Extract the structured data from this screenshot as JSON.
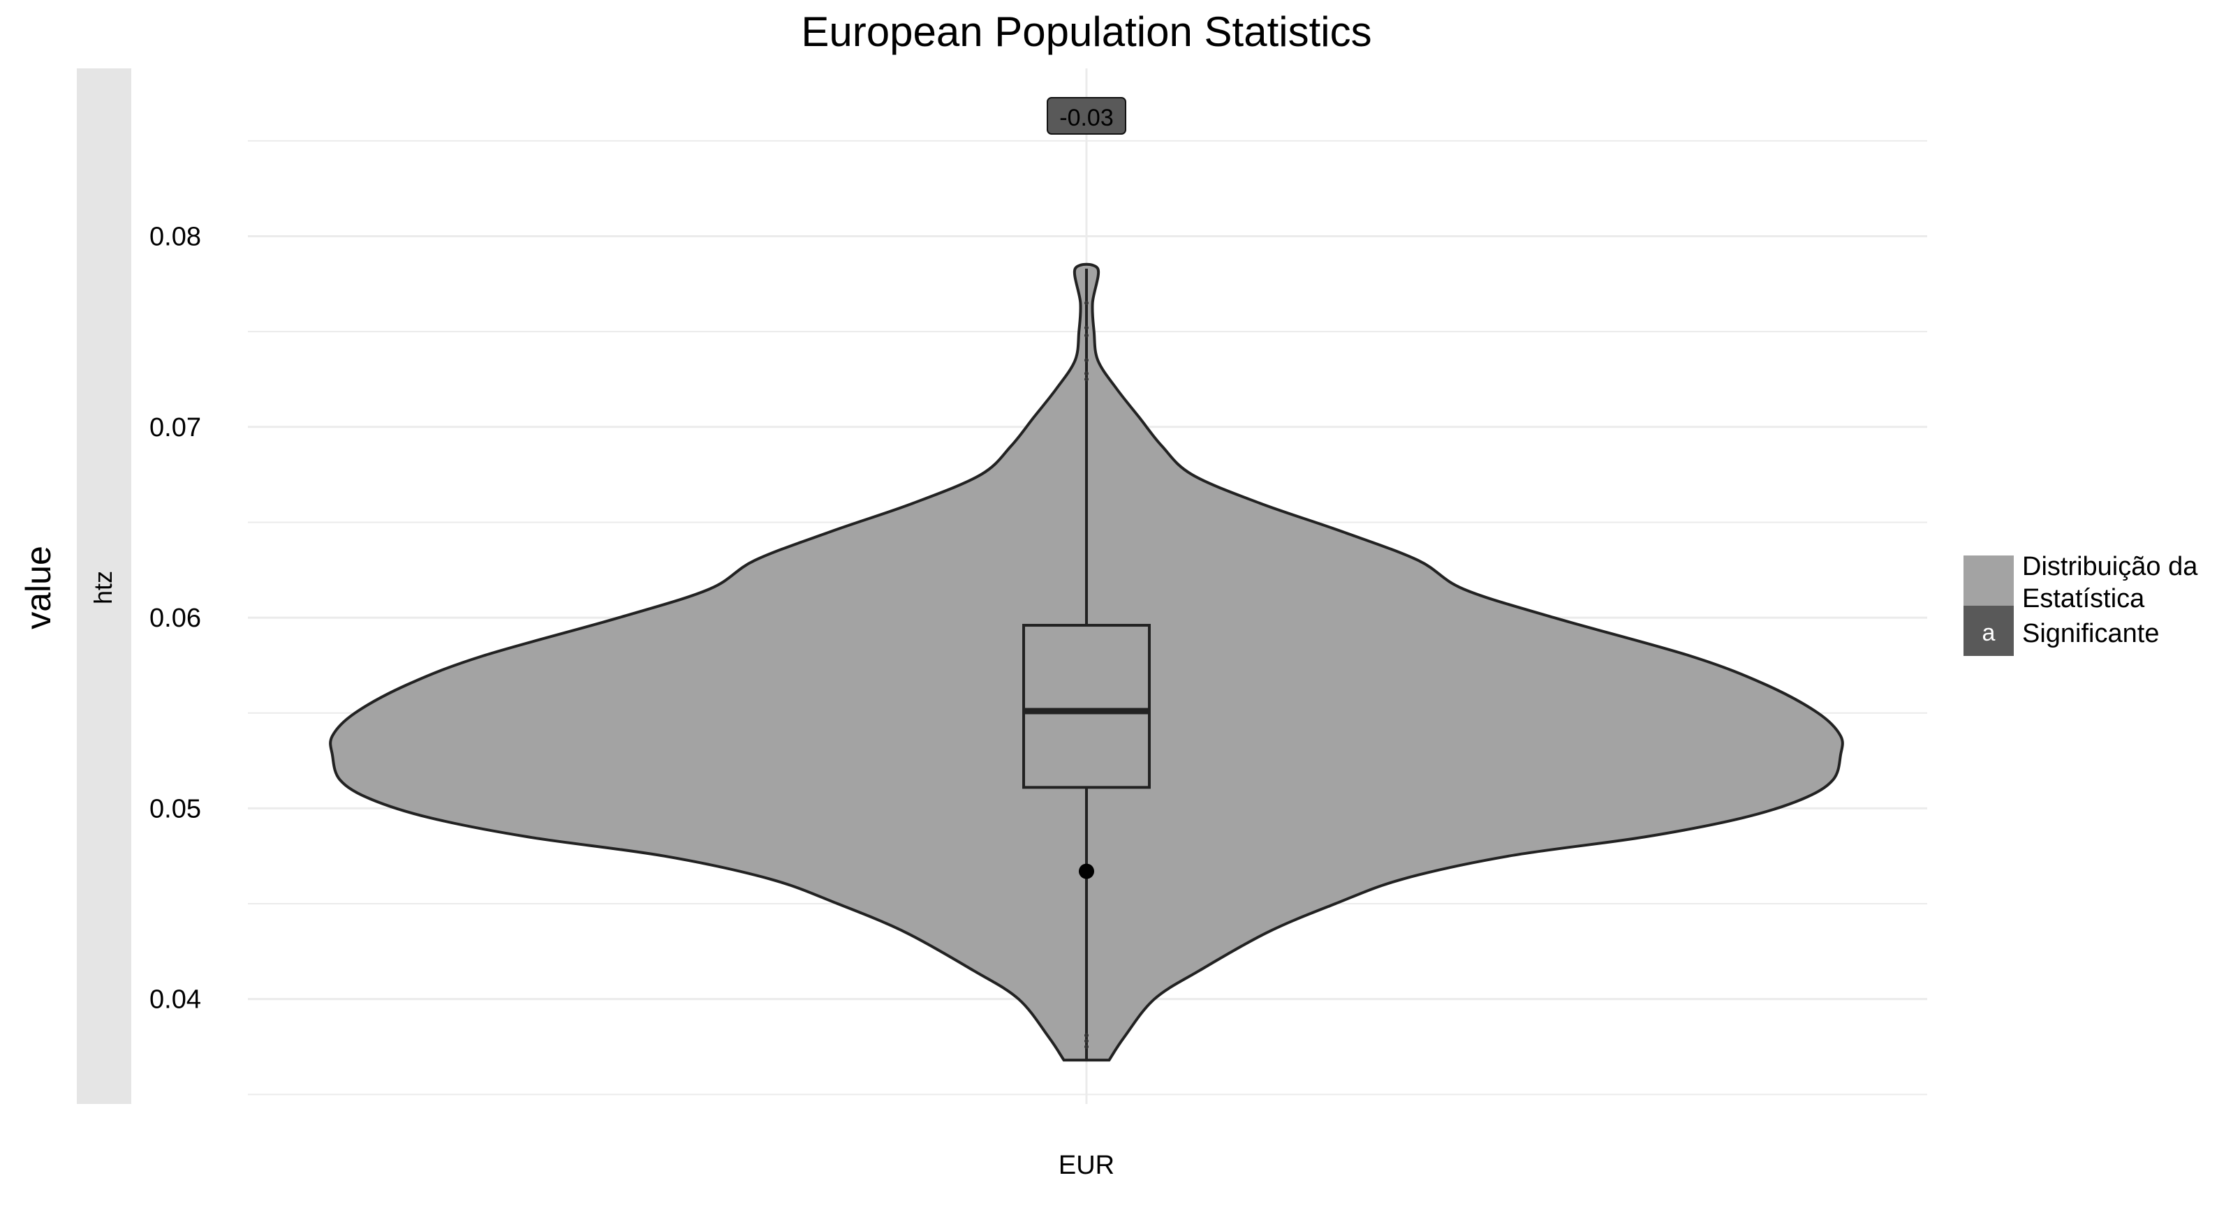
{
  "chart_data": {
    "type": "violin",
    "title": "European Population Statistics",
    "xlabel": "",
    "ylabel": "value",
    "facet_strip_label": "htz",
    "categories": [
      "EUR"
    ],
    "ylim": [
      0.0345,
      0.0888
    ],
    "yticks": [
      "0.04",
      "0.05",
      "0.06",
      "0.07",
      "0.08"
    ],
    "grid": true,
    "violin": {
      "min": 0.0368,
      "max": 0.0783,
      "density": [
        {
          "y": 0.0368,
          "w": 0.03
        },
        {
          "y": 0.038,
          "w": 0.05
        },
        {
          "y": 0.04,
          "w": 0.09
        },
        {
          "y": 0.0415,
          "w": 0.15
        },
        {
          "y": 0.0435,
          "w": 0.24
        },
        {
          "y": 0.045,
          "w": 0.33
        },
        {
          "y": 0.0463,
          "w": 0.42
        },
        {
          "y": 0.0475,
          "w": 0.56
        },
        {
          "y": 0.0485,
          "w": 0.74
        },
        {
          "y": 0.0495,
          "w": 0.87
        },
        {
          "y": 0.0505,
          "w": 0.95
        },
        {
          "y": 0.0515,
          "w": 0.99
        },
        {
          "y": 0.0528,
          "w": 1.0
        },
        {
          "y": 0.0538,
          "w": 1.0
        },
        {
          "y": 0.055,
          "w": 0.97
        },
        {
          "y": 0.0565,
          "w": 0.9
        },
        {
          "y": 0.058,
          "w": 0.8
        },
        {
          "y": 0.06,
          "w": 0.62
        },
        {
          "y": 0.0615,
          "w": 0.5
        },
        {
          "y": 0.063,
          "w": 0.44
        },
        {
          "y": 0.0645,
          "w": 0.34
        },
        {
          "y": 0.066,
          "w": 0.23
        },
        {
          "y": 0.0675,
          "w": 0.14
        },
        {
          "y": 0.069,
          "w": 0.1
        },
        {
          "y": 0.0705,
          "w": 0.07
        },
        {
          "y": 0.072,
          "w": 0.04
        },
        {
          "y": 0.0735,
          "w": 0.015
        },
        {
          "y": 0.075,
          "w": 0.01
        },
        {
          "y": 0.0765,
          "w": 0.008
        },
        {
          "y": 0.0783,
          "w": 0.015
        }
      ]
    },
    "boxplot": {
      "whisker_low": 0.0368,
      "q1": 0.0511,
      "median": 0.0551,
      "q3": 0.0596,
      "whisker_high": 0.0783
    },
    "highlight_point": 0.0467,
    "annotation": "-0.03",
    "legend": {
      "position": "right",
      "entries": [
        {
          "label": "Distribuição da Estatística",
          "color": "#a3a3a3",
          "key_text": ""
        },
        {
          "label": "Significante",
          "color": "#595959",
          "key_text": "a"
        }
      ]
    },
    "colors": {
      "violin_fill": "#a3a3a3",
      "label_fill": "#595959",
      "strip_fill": "#e5e5e5",
      "grid": "#ebebeb",
      "outline": "#222222"
    }
  }
}
